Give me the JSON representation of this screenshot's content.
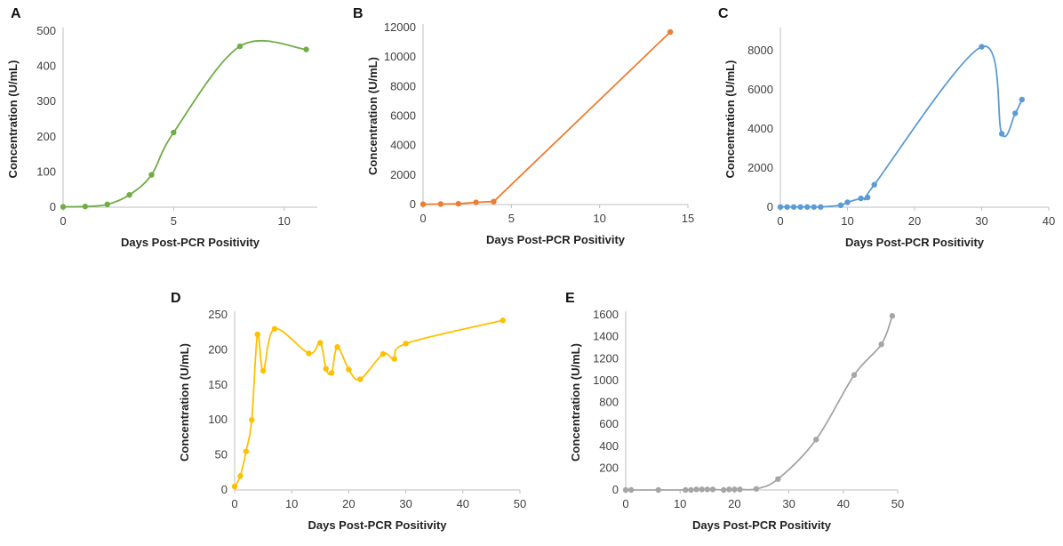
{
  "chart_data": [
    {
      "panel": "A",
      "type": "line",
      "color": "#70AD47",
      "xlabel": "Days Post-PCR Positivity",
      "ylabel": "Concentration (U/mL)",
      "xlim": [
        0,
        11.5
      ],
      "ylim": [
        0,
        500
      ],
      "xticks": [
        0,
        5,
        10
      ],
      "yticks": [
        0,
        100,
        200,
        300,
        400,
        500
      ],
      "x": [
        0,
        1,
        2,
        3,
        4,
        5,
        8,
        11
      ],
      "y": [
        1,
        2,
        8,
        35,
        92,
        212,
        457,
        448
      ],
      "smooth": true
    },
    {
      "panel": "B",
      "type": "line",
      "color": "#ED7D31",
      "xlabel": "Days Post-PCR Positivity",
      "ylabel": "Concentration (U/mL)",
      "xlim": [
        0,
        15
      ],
      "ylim": [
        0,
        12000
      ],
      "xticks": [
        0,
        5,
        10,
        15
      ],
      "yticks": [
        0,
        2000,
        4000,
        6000,
        8000,
        10000,
        12000
      ],
      "x": [
        0,
        1,
        2,
        3,
        4,
        14
      ],
      "y": [
        20,
        30,
        50,
        150,
        200,
        11700
      ],
      "smooth": false
    },
    {
      "panel": "C",
      "type": "line",
      "color": "#5B9BD5",
      "xlabel": "Days Post-PCR Positivity",
      "ylabel": "Concentration (U/mL)",
      "xlim": [
        0,
        40
      ],
      "ylim": [
        0,
        9000
      ],
      "xticks": [
        0,
        10,
        20,
        30,
        40
      ],
      "yticks": [
        0,
        2000,
        4000,
        6000,
        8000
      ],
      "x": [
        0,
        1,
        2,
        3,
        4,
        5,
        6,
        9,
        10,
        12,
        13,
        14,
        30,
        33,
        35,
        36
      ],
      "y": [
        10,
        10,
        10,
        10,
        10,
        10,
        10,
        100,
        250,
        450,
        500,
        1150,
        8200,
        3750,
        4800,
        5500
      ],
      "smooth": true
    },
    {
      "panel": "D",
      "type": "line",
      "color": "#FFC000",
      "xlabel": "Days Post-PCR Positivity",
      "ylabel": "Concentration (U/mL)",
      "xlim": [
        0,
        50
      ],
      "ylim": [
        0,
        250
      ],
      "xticks": [
        0,
        10,
        20,
        30,
        40,
        50
      ],
      "yticks": [
        0,
        50,
        100,
        150,
        200,
        250
      ],
      "x": [
        0,
        1,
        2,
        3,
        4,
        5,
        7,
        13,
        15,
        16,
        17,
        18,
        20,
        22,
        26,
        28,
        30,
        47
      ],
      "y": [
        5,
        20,
        55,
        100,
        222,
        170,
        230,
        195,
        210,
        173,
        167,
        204,
        172,
        158,
        194,
        187,
        209,
        242
      ],
      "smooth": true
    },
    {
      "panel": "E",
      "type": "line",
      "color": "#A5A5A5",
      "xlabel": "Days Post-PCR Positivity",
      "ylabel": "Concentration (U/mL)",
      "xlim": [
        0,
        50
      ],
      "ylim": [
        0,
        1600
      ],
      "xticks": [
        0,
        10,
        20,
        30,
        40,
        50
      ],
      "yticks": [
        0,
        200,
        400,
        600,
        800,
        1000,
        1200,
        1400,
        1600
      ],
      "x": [
        0,
        1,
        6,
        11,
        12,
        13,
        14,
        15,
        16,
        18,
        19,
        20,
        21,
        24,
        28,
        35,
        42,
        47,
        49
      ],
      "y": [
        0,
        0,
        0,
        0,
        0,
        5,
        5,
        5,
        5,
        0,
        5,
        5,
        5,
        10,
        100,
        460,
        1050,
        1330,
        1590
      ],
      "smooth": true
    }
  ]
}
